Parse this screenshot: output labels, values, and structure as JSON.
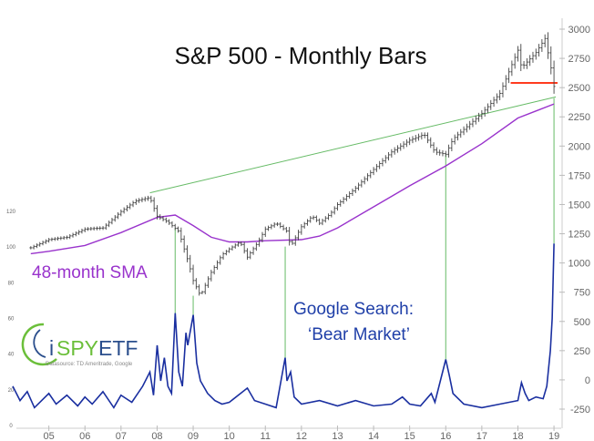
{
  "chart_data": {
    "type": "line",
    "title": "S&P 500 - Monthly Bars",
    "annotations": {
      "sma": "48-month SMA",
      "google_line1": "Google Search:",
      "google_line2": "‘Bear Market’"
    },
    "logo": {
      "brand_i": "i",
      "brand_spy": "SPY",
      "brand_etf": "ETF",
      "source": "Datasource: TD Ameritrade, Google"
    },
    "x_ticks": [
      "05",
      "06",
      "07",
      "08",
      "09",
      "10",
      "11",
      "12",
      "13",
      "14",
      "15",
      "16",
      "17",
      "18",
      "19"
    ],
    "right_axis": {
      "ticks": [
        3000,
        2750,
        2500,
        2250,
        2000,
        1750,
        1500,
        1250,
        1000,
        750,
        500,
        250,
        0,
        -250
      ],
      "ylim": [
        -250,
        3000
      ]
    },
    "left_axis": {
      "ticks": [
        120,
        100,
        80,
        60,
        40,
        20,
        0
      ],
      "ylim": [
        0,
        120
      ]
    },
    "colors": {
      "price": "#444444",
      "sma": "#9933cc",
      "google": "#1a2fa0",
      "trendline": "#66bb66",
      "resistance": "#ff3b1f",
      "logo_green": "#6bbf3a",
      "logo_blue": "#2a4e8c"
    },
    "series": [
      {
        "name": "S&P 500",
        "unit": "index",
        "points": [
          [
            2004.5,
            1130
          ],
          [
            2005.0,
            1200
          ],
          [
            2005.5,
            1220
          ],
          [
            2006.0,
            1290
          ],
          [
            2006.5,
            1300
          ],
          [
            2007.0,
            1440
          ],
          [
            2007.4,
            1530
          ],
          [
            2007.8,
            1560
          ],
          [
            2008.0,
            1400
          ],
          [
            2008.3,
            1350
          ],
          [
            2008.6,
            1270
          ],
          [
            2008.9,
            970
          ],
          [
            2009.0,
            850
          ],
          [
            2009.2,
            720
          ],
          [
            2009.5,
            920
          ],
          [
            2009.8,
            1070
          ],
          [
            2010.0,
            1120
          ],
          [
            2010.3,
            1180
          ],
          [
            2010.5,
            1050
          ],
          [
            2010.8,
            1180
          ],
          [
            2011.0,
            1290
          ],
          [
            2011.3,
            1340
          ],
          [
            2011.6,
            1270
          ],
          [
            2011.7,
            1140
          ],
          [
            2012.0,
            1310
          ],
          [
            2012.3,
            1400
          ],
          [
            2012.5,
            1340
          ],
          [
            2012.8,
            1420
          ],
          [
            2013.0,
            1500
          ],
          [
            2013.5,
            1640
          ],
          [
            2014.0,
            1800
          ],
          [
            2014.5,
            1950
          ],
          [
            2015.0,
            2050
          ],
          [
            2015.4,
            2100
          ],
          [
            2015.7,
            1950
          ],
          [
            2016.0,
            1930
          ],
          [
            2016.2,
            2060
          ],
          [
            2016.6,
            2170
          ],
          [
            2017.0,
            2280
          ],
          [
            2017.5,
            2450
          ],
          [
            2018.0,
            2820
          ],
          [
            2018.1,
            2670
          ],
          [
            2018.5,
            2800
          ],
          [
            2018.75,
            2920
          ],
          [
            2018.9,
            2700
          ],
          [
            2019.0,
            2510
          ]
        ]
      },
      {
        "name": "48-month SMA",
        "unit": "index",
        "points": [
          [
            2004.5,
            1080
          ],
          [
            2005.0,
            1100
          ],
          [
            2006.0,
            1150
          ],
          [
            2007.0,
            1260
          ],
          [
            2008.0,
            1390
          ],
          [
            2008.5,
            1410
          ],
          [
            2009.0,
            1320
          ],
          [
            2009.5,
            1220
          ],
          [
            2010.0,
            1180
          ],
          [
            2010.5,
            1180
          ],
          [
            2011.0,
            1190
          ],
          [
            2012.0,
            1200
          ],
          [
            2012.5,
            1230
          ],
          [
            2013.0,
            1300
          ],
          [
            2014.0,
            1480
          ],
          [
            2015.0,
            1660
          ],
          [
            2016.0,
            1830
          ],
          [
            2017.0,
            2020
          ],
          [
            2018.0,
            2240
          ],
          [
            2018.5,
            2300
          ],
          [
            2019.0,
            2360
          ]
        ]
      },
      {
        "name": "Google Search: ‘Bear Market’",
        "unit": "relative interest",
        "points": [
          [
            2004.0,
            22
          ],
          [
            2004.2,
            14
          ],
          [
            2004.4,
            19
          ],
          [
            2004.6,
            10
          ],
          [
            2005.0,
            18
          ],
          [
            2005.2,
            12
          ],
          [
            2005.5,
            17
          ],
          [
            2005.8,
            11
          ],
          [
            2006.0,
            16
          ],
          [
            2006.2,
            12
          ],
          [
            2006.5,
            19
          ],
          [
            2006.8,
            10
          ],
          [
            2007.0,
            17
          ],
          [
            2007.3,
            13
          ],
          [
            2007.6,
            22
          ],
          [
            2007.8,
            30
          ],
          [
            2007.9,
            17
          ],
          [
            2008.0,
            45
          ],
          [
            2008.1,
            25
          ],
          [
            2008.2,
            38
          ],
          [
            2008.3,
            22
          ],
          [
            2008.4,
            18
          ],
          [
            2008.5,
            63
          ],
          [
            2008.6,
            30
          ],
          [
            2008.7,
            22
          ],
          [
            2008.8,
            52
          ],
          [
            2008.85,
            45
          ],
          [
            2009.0,
            62
          ],
          [
            2009.1,
            35
          ],
          [
            2009.2,
            25
          ],
          [
            2009.4,
            18
          ],
          [
            2009.6,
            14
          ],
          [
            2009.8,
            12
          ],
          [
            2010.0,
            13
          ],
          [
            2010.5,
            21
          ],
          [
            2010.7,
            14
          ],
          [
            2011.0,
            12
          ],
          [
            2011.3,
            10
          ],
          [
            2011.55,
            38
          ],
          [
            2011.6,
            25
          ],
          [
            2011.7,
            30
          ],
          [
            2011.8,
            16
          ],
          [
            2012.0,
            12
          ],
          [
            2012.5,
            14
          ],
          [
            2013.0,
            11
          ],
          [
            2013.5,
            14
          ],
          [
            2014.0,
            11
          ],
          [
            2014.5,
            12
          ],
          [
            2014.8,
            16
          ],
          [
            2015.0,
            12
          ],
          [
            2015.3,
            11
          ],
          [
            2015.6,
            18
          ],
          [
            2015.7,
            13
          ],
          [
            2016.0,
            37
          ],
          [
            2016.1,
            28
          ],
          [
            2016.2,
            18
          ],
          [
            2016.5,
            12
          ],
          [
            2017.0,
            10
          ],
          [
            2017.5,
            12
          ],
          [
            2018.0,
            14
          ],
          [
            2018.1,
            24
          ],
          [
            2018.2,
            18
          ],
          [
            2018.3,
            14
          ],
          [
            2018.5,
            16
          ],
          [
            2018.7,
            15
          ],
          [
            2018.8,
            22
          ],
          [
            2018.9,
            42
          ],
          [
            2018.95,
            60
          ],
          [
            2019.0,
            102
          ]
        ]
      }
    ]
  }
}
